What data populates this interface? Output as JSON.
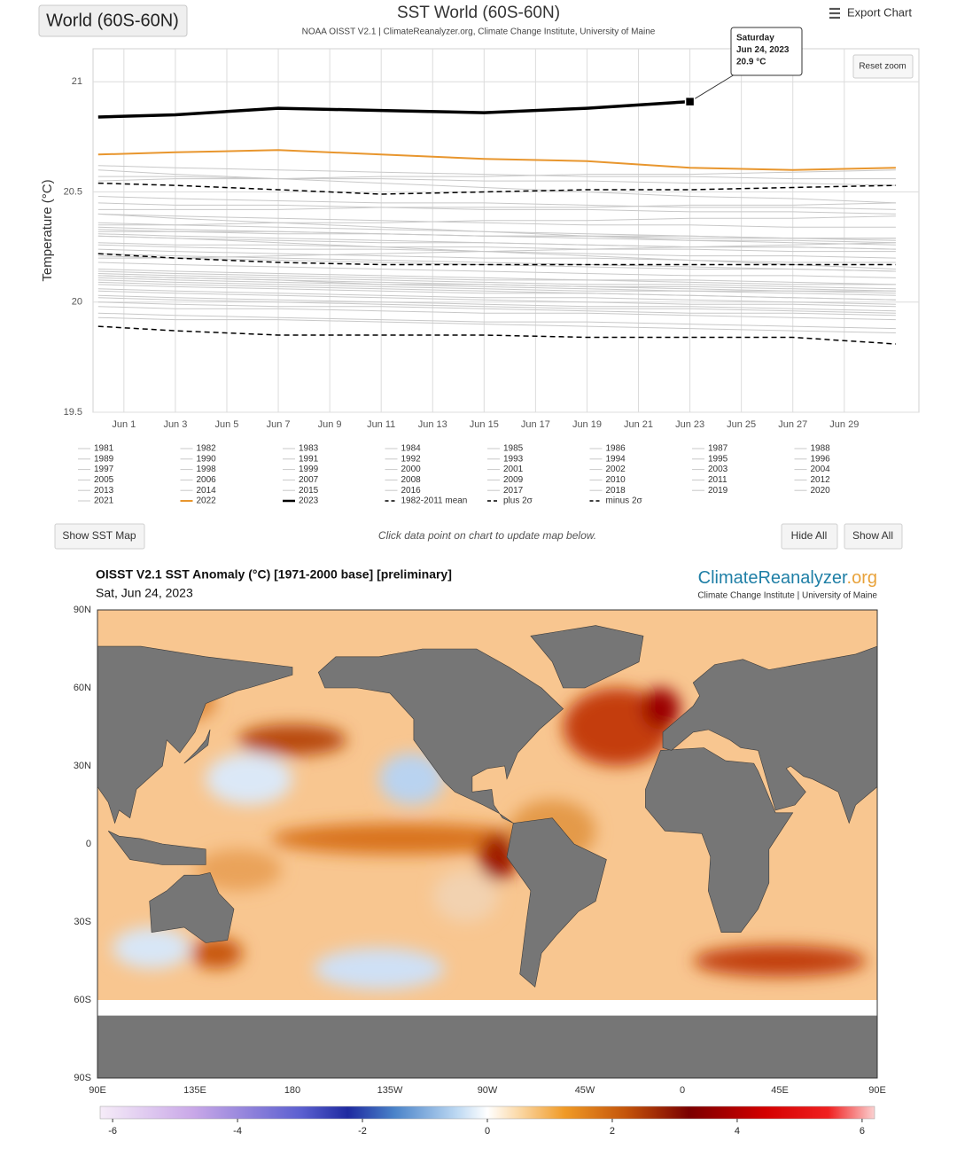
{
  "ui": {
    "region_button": "World (60S-60N)",
    "export": "Export Chart",
    "reset_zoom": "Reset zoom",
    "show_map": "Show SST Map",
    "hint": "Click data point on chart to update map below.",
    "hide_all": "Hide All",
    "show_all": "Show All"
  },
  "chart_data": {
    "type": "line",
    "title": "SST World (60S-60N)",
    "subtitle": "NOAA OISST V2.1 | ClimateReanalyzer.org, Climate Change Institute, University of Maine",
    "y_label": "Temperature (°C)",
    "x": [
      0,
      3,
      7,
      11,
      15,
      19,
      23,
      27,
      31
    ],
    "xlim": [
      -0.2,
      31.9
    ],
    "xticks": [
      {
        "value": 1,
        "label": "Jun 1"
      },
      {
        "value": 3,
        "label": "Jun 3"
      },
      {
        "value": 5,
        "label": "Jun 5"
      },
      {
        "value": 7,
        "label": "Jun 7"
      },
      {
        "value": 9,
        "label": "Jun 9"
      },
      {
        "value": 11,
        "label": "Jun 11"
      },
      {
        "value": 13,
        "label": "Jun 13"
      },
      {
        "value": 15,
        "label": "Jun 15"
      },
      {
        "value": 17,
        "label": "Jun 17"
      },
      {
        "value": 19,
        "label": "Jun 19"
      },
      {
        "value": 21,
        "label": "Jun 21"
      },
      {
        "value": 23,
        "label": "Jun 23"
      },
      {
        "value": 25,
        "label": "Jun 25"
      },
      {
        "value": 27,
        "label": "Jun 27"
      },
      {
        "value": 29,
        "label": "Jun 29"
      }
    ],
    "ylim": [
      19.5,
      21.15
    ],
    "yticks": [
      19.5,
      20,
      20.5,
      21
    ],
    "grid": true,
    "series": [
      {
        "name": "1981",
        "color": "#c8c8c8",
        "width": 1,
        "dashed": false,
        "values": [
          20.02,
          20.01,
          20.0,
          19.99,
          19.98,
          19.97,
          19.97,
          19.96,
          19.95
        ]
      },
      {
        "name": "1982",
        "color": "#c8c8c8",
        "width": 1,
        "dashed": false,
        "values": [
          19.98,
          19.97,
          19.97,
          19.96,
          19.95,
          19.95,
          19.94,
          19.93,
          19.92
        ]
      },
      {
        "name": "1983",
        "color": "#c8c8c8",
        "width": 1,
        "dashed": false,
        "values": [
          20.12,
          20.11,
          20.1,
          20.08,
          20.07,
          20.06,
          20.05,
          20.05,
          20.04
        ]
      },
      {
        "name": "1984",
        "color": "#c8c8c8",
        "width": 1,
        "dashed": false,
        "values": [
          19.95,
          19.94,
          19.93,
          19.92,
          19.91,
          19.91,
          19.9,
          19.89,
          19.88
        ]
      },
      {
        "name": "1985",
        "color": "#c8c8c8",
        "width": 1,
        "dashed": false,
        "values": [
          19.93,
          19.92,
          19.92,
          19.91,
          19.9,
          19.89,
          19.88,
          19.87,
          19.86
        ]
      },
      {
        "name": "1986",
        "color": "#c8c8c8",
        "width": 1,
        "dashed": false,
        "values": [
          20.0,
          19.99,
          19.98,
          19.98,
          19.97,
          19.96,
          19.95,
          19.95,
          19.94
        ]
      },
      {
        "name": "1987",
        "color": "#c8c8c8",
        "width": 1,
        "dashed": false,
        "values": [
          20.15,
          20.14,
          20.13,
          20.12,
          20.11,
          20.1,
          20.1,
          20.09,
          20.08
        ]
      },
      {
        "name": "1988",
        "color": "#c8c8c8",
        "width": 1,
        "dashed": false,
        "values": [
          20.09,
          20.08,
          20.07,
          20.06,
          20.05,
          20.04,
          20.03,
          20.02,
          20.01
        ]
      },
      {
        "name": "1989",
        "color": "#c8c8c8",
        "width": 1,
        "dashed": false,
        "values": [
          20.03,
          20.02,
          20.01,
          20.0,
          19.99,
          19.98,
          19.98,
          19.97,
          19.96
        ]
      },
      {
        "name": "1990",
        "color": "#c8c8c8",
        "width": 1,
        "dashed": false,
        "values": [
          20.1,
          20.09,
          20.08,
          20.07,
          20.06,
          20.05,
          20.05,
          20.04,
          20.03
        ]
      },
      {
        "name": "1991",
        "color": "#c8c8c8",
        "width": 1,
        "dashed": false,
        "values": [
          20.08,
          20.07,
          20.06,
          20.05,
          20.04,
          20.04,
          20.03,
          20.02,
          20.01
        ]
      },
      {
        "name": "1992",
        "color": "#c8c8c8",
        "width": 1,
        "dashed": false,
        "values": [
          20.05,
          20.04,
          20.03,
          20.02,
          20.01,
          20.0,
          19.99,
          19.99,
          19.98
        ]
      },
      {
        "name": "1993",
        "color": "#c8c8c8",
        "width": 1,
        "dashed": false,
        "values": [
          20.06,
          20.05,
          20.04,
          20.03,
          20.02,
          20.02,
          20.01,
          20.0,
          19.99
        ]
      },
      {
        "name": "1994",
        "color": "#c8c8c8",
        "width": 1,
        "dashed": false,
        "values": [
          20.11,
          20.1,
          20.09,
          20.08,
          20.08,
          20.07,
          20.06,
          20.05,
          20.05
        ]
      },
      {
        "name": "1995",
        "color": "#c8c8c8",
        "width": 1,
        "dashed": false,
        "values": [
          20.18,
          20.17,
          20.16,
          20.15,
          20.14,
          20.13,
          20.12,
          20.12,
          20.11
        ]
      },
      {
        "name": "1996",
        "color": "#c8c8c8",
        "width": 1,
        "dashed": false,
        "values": [
          20.13,
          20.12,
          20.11,
          20.1,
          20.09,
          20.08,
          20.08,
          20.07,
          20.06
        ]
      },
      {
        "name": "1997",
        "color": "#c8c8c8",
        "width": 1,
        "dashed": false,
        "values": [
          20.2,
          20.2,
          20.21,
          20.22,
          20.23,
          20.24,
          20.25,
          20.26,
          20.27
        ]
      },
      {
        "name": "1998",
        "color": "#c8c8c8",
        "width": 1,
        "dashed": false,
        "values": [
          20.3,
          20.29,
          20.27,
          20.25,
          20.23,
          20.21,
          20.19,
          20.17,
          20.15
        ]
      },
      {
        "name": "1999",
        "color": "#c8c8c8",
        "width": 1,
        "dashed": false,
        "values": [
          20.12,
          20.11,
          20.1,
          20.09,
          20.08,
          20.07,
          20.07,
          20.06,
          20.05
        ]
      },
      {
        "name": "2000",
        "color": "#c8c8c8",
        "width": 1,
        "dashed": false,
        "values": [
          20.14,
          20.13,
          20.12,
          20.11,
          20.1,
          20.1,
          20.09,
          20.08,
          20.08
        ]
      },
      {
        "name": "2001",
        "color": "#c8c8c8",
        "width": 1,
        "dashed": false,
        "values": [
          20.24,
          20.23,
          20.22,
          20.21,
          20.2,
          20.2,
          20.19,
          20.18,
          20.18
        ]
      },
      {
        "name": "2002",
        "color": "#c8c8c8",
        "width": 1,
        "dashed": false,
        "values": [
          20.27,
          20.26,
          20.26,
          20.25,
          20.25,
          20.24,
          20.24,
          20.23,
          20.23
        ]
      },
      {
        "name": "2003",
        "color": "#c8c8c8",
        "width": 1,
        "dashed": false,
        "values": [
          20.34,
          20.33,
          20.32,
          20.31,
          20.3,
          20.29,
          20.28,
          20.28,
          20.27
        ]
      },
      {
        "name": "2004",
        "color": "#c8c8c8",
        "width": 1,
        "dashed": false,
        "values": [
          20.31,
          20.3,
          20.29,
          20.28,
          20.27,
          20.26,
          20.25,
          20.25,
          20.24
        ]
      },
      {
        "name": "2005",
        "color": "#c8c8c8",
        "width": 1,
        "dashed": false,
        "values": [
          20.36,
          20.35,
          20.34,
          20.33,
          20.32,
          20.31,
          20.3,
          20.29,
          20.29
        ]
      },
      {
        "name": "2006",
        "color": "#c8c8c8",
        "width": 1,
        "dashed": false,
        "values": [
          20.33,
          20.32,
          20.32,
          20.31,
          20.3,
          20.3,
          20.29,
          20.29,
          20.28
        ]
      },
      {
        "name": "2007",
        "color": "#c8c8c8",
        "width": 1,
        "dashed": false,
        "values": [
          20.22,
          20.21,
          20.2,
          20.19,
          20.18,
          20.17,
          20.16,
          20.15,
          20.14
        ]
      },
      {
        "name": "2008",
        "color": "#c8c8c8",
        "width": 1,
        "dashed": false,
        "values": [
          20.21,
          20.2,
          20.19,
          20.18,
          20.17,
          20.16,
          20.15,
          20.15,
          20.14
        ]
      },
      {
        "name": "2009",
        "color": "#c8c8c8",
        "width": 1,
        "dashed": false,
        "values": [
          20.35,
          20.35,
          20.36,
          20.36,
          20.37,
          20.37,
          20.38,
          20.38,
          20.39
        ]
      },
      {
        "name": "2010",
        "color": "#c8c8c8",
        "width": 1,
        "dashed": false,
        "values": [
          20.4,
          20.38,
          20.36,
          20.34,
          20.32,
          20.3,
          20.28,
          20.27,
          20.26
        ]
      },
      {
        "name": "2011",
        "color": "#c8c8c8",
        "width": 1,
        "dashed": false,
        "values": [
          20.26,
          20.25,
          20.24,
          20.24,
          20.23,
          20.22,
          20.21,
          20.21,
          20.2
        ]
      },
      {
        "name": "2012",
        "color": "#c8c8c8",
        "width": 1,
        "dashed": false,
        "values": [
          20.32,
          20.32,
          20.31,
          20.31,
          20.3,
          20.3,
          20.3,
          20.29,
          20.29
        ]
      },
      {
        "name": "2013",
        "color": "#c8c8c8",
        "width": 1,
        "dashed": false,
        "values": [
          20.3,
          20.29,
          20.28,
          20.27,
          20.27,
          20.26,
          20.25,
          20.25,
          20.24
        ]
      },
      {
        "name": "2014",
        "color": "#c8c8c8",
        "width": 1,
        "dashed": false,
        "values": [
          20.42,
          20.42,
          20.42,
          20.43,
          20.43,
          20.43,
          20.44,
          20.44,
          20.45
        ]
      },
      {
        "name": "2015",
        "color": "#c8c8c8",
        "width": 1,
        "dashed": false,
        "values": [
          20.55,
          20.56,
          20.56,
          20.57,
          20.57,
          20.58,
          20.58,
          20.59,
          20.6
        ]
      },
      {
        "name": "2016",
        "color": "#c8c8c8",
        "width": 1,
        "dashed": false,
        "values": [
          20.6,
          20.58,
          20.56,
          20.54,
          20.52,
          20.5,
          20.48,
          20.47,
          20.45
        ]
      },
      {
        "name": "2017",
        "color": "#c8c8c8",
        "width": 1,
        "dashed": false,
        "values": [
          20.48,
          20.47,
          20.46,
          20.45,
          20.45,
          20.44,
          20.43,
          20.43,
          20.42
        ]
      },
      {
        "name": "2018",
        "color": "#c8c8c8",
        "width": 1,
        "dashed": false,
        "values": [
          20.4,
          20.39,
          20.38,
          20.37,
          20.36,
          20.35,
          20.35,
          20.34,
          20.34
        ]
      },
      {
        "name": "2019",
        "color": "#c8c8c8",
        "width": 1,
        "dashed": false,
        "values": [
          20.57,
          20.57,
          20.56,
          20.56,
          20.55,
          20.55,
          20.54,
          20.54,
          20.53
        ]
      },
      {
        "name": "2020",
        "color": "#c8c8c8",
        "width": 1,
        "dashed": false,
        "values": [
          20.62,
          20.61,
          20.6,
          20.59,
          20.58,
          20.57,
          20.57,
          20.56,
          20.56
        ]
      },
      {
        "name": "2021",
        "color": "#c8c8c8",
        "width": 1,
        "dashed": false,
        "values": [
          20.45,
          20.44,
          20.44,
          20.43,
          20.42,
          20.42,
          20.41,
          20.41,
          20.4
        ]
      },
      {
        "name": "2022",
        "color": "#e8962e",
        "width": 2,
        "dashed": false,
        "values": [
          20.67,
          20.68,
          20.69,
          20.67,
          20.65,
          20.64,
          20.61,
          20.6,
          20.61
        ]
      },
      {
        "name": "2023",
        "color": "#000000",
        "width": 3.5,
        "dashed": false,
        "values": [
          20.84,
          20.85,
          20.88,
          20.87,
          20.86,
          20.88,
          20.91,
          null,
          null
        ]
      },
      {
        "name": "1982-2011 mean",
        "color": "#000000",
        "width": 1.5,
        "dashed": true,
        "values": [
          20.22,
          20.2,
          20.18,
          20.17,
          20.17,
          20.17,
          20.17,
          20.17,
          20.17
        ]
      },
      {
        "name": "plus 2σ",
        "color": "#000000",
        "width": 1.5,
        "dashed": true,
        "values": [
          20.54,
          20.53,
          20.51,
          20.49,
          20.5,
          20.51,
          20.51,
          20.52,
          20.53
        ]
      },
      {
        "name": "minus 2σ",
        "color": "#000000",
        "width": 1.5,
        "dashed": true,
        "values": [
          19.89,
          19.87,
          19.85,
          19.85,
          19.85,
          19.84,
          19.84,
          19.84,
          19.81
        ]
      }
    ],
    "tooltip": {
      "day": "Saturday",
      "date": "Jun 24, 2023",
      "value": "20.9 °C"
    }
  },
  "map": {
    "title": "OISST V2.1 SST Anomaly (°C) [1971-2000 base] [preliminary]",
    "date": "Sat, Jun 24, 2023",
    "brand": {
      "name": "ClimateReanalyzer",
      "tld": ".org",
      "subtitle": "Climate Change Institute | University of Maine"
    },
    "lat_labels": [
      "90N",
      "60N",
      "30N",
      "0",
      "30S",
      "60S",
      "90S"
    ],
    "lon_labels": [
      "90E",
      "135E",
      "180",
      "135W",
      "90W",
      "45W",
      "0",
      "45E",
      "90E"
    ],
    "colorbar": {
      "lim": [
        -6.2,
        6.2
      ],
      "ticks": [
        -6,
        -4,
        -2,
        0,
        2,
        4,
        6
      ]
    }
  }
}
